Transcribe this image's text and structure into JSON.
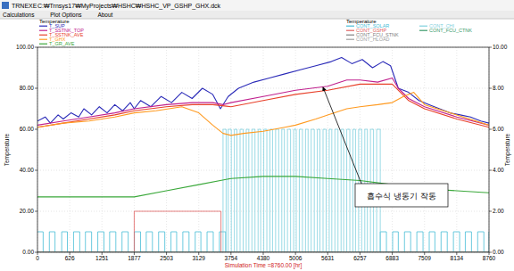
{
  "window": {
    "title": "TRNEXE",
    "path": "C:₩Trnsys17₩MyProjects₩HSHC₩HSHC_VP_GSHP_GHX.dck",
    "menu": [
      "Calculations",
      "Plot Options",
      "About"
    ]
  },
  "chart_data": {
    "type": "line",
    "x_label": "Simulation Time =8760.00 [hr]",
    "y_label": "Temperature",
    "y2_label": "Temperature",
    "legend_title": "Temperature",
    "legend2_title": "Temperature",
    "annotation": "흡수식 냉동기 작동",
    "grid": true,
    "xlim": [
      0,
      8760
    ],
    "xticks": [
      0,
      626,
      1251,
      1877,
      2503,
      3129,
      3754,
      4380,
      5006,
      5631,
      6257,
      6883,
      7509,
      8134,
      8760
    ],
    "ylim": [
      0,
      100
    ],
    "yticks": [
      {
        "value": 0,
        "label": "0.00"
      },
      {
        "value": 20,
        "label": "20.00"
      },
      {
        "value": 40,
        "label": "40.00"
      },
      {
        "value": 60,
        "label": "60.00"
      },
      {
        "value": 80,
        "label": "80.00"
      },
      {
        "value": 100,
        "label": "100.00"
      }
    ],
    "y2lim": [
      0,
      10
    ],
    "y2ticks": [
      {
        "value": 0,
        "label": "0.00"
      },
      {
        "value": 2,
        "label": "2.00"
      },
      {
        "value": 4,
        "label": "4.00"
      },
      {
        "value": 6,
        "label": "6.00"
      },
      {
        "value": 8,
        "label": "8.00"
      },
      {
        "value": 10,
        "label": "10.00"
      }
    ],
    "series": [
      {
        "name": "CONT_SOLAR",
        "color": "#45bcd6",
        "axis": "y2",
        "line_style": "step",
        "x": [
          0,
          110,
          230,
          340,
          470,
          580,
          700,
          820,
          930,
          1050,
          1170,
          1290,
          1400,
          1520,
          1640,
          1760,
          1880,
          2000,
          2110,
          2230,
          2350,
          2470,
          2590,
          2700,
          2820,
          2940,
          3060,
          3170,
          3290,
          3410,
          3530,
          3650,
          6650,
          6770,
          6890,
          7000,
          7120,
          7240,
          7360,
          7480,
          7600,
          7710,
          7830,
          7950,
          8070,
          8190,
          8300,
          8420,
          8540,
          8660,
          8760
        ],
        "values": [
          1,
          0,
          1,
          0,
          1,
          0,
          1,
          0,
          1,
          0,
          1,
          0,
          1,
          0,
          1,
          0,
          1,
          0,
          1,
          0,
          1,
          0,
          1,
          0,
          1,
          0,
          1,
          0,
          1,
          0,
          1,
          0,
          1,
          0,
          1,
          0,
          1,
          0,
          1,
          0,
          1,
          0,
          1,
          0,
          1,
          0,
          1,
          0,
          1,
          0,
          1
        ]
      },
      {
        "name": "CONT_CHI",
        "color": "#7fd0de",
        "axis": "y2",
        "line_style": "step",
        "x": [
          0,
          3600,
          3660,
          3700,
          3760,
          3820,
          3870,
          3930,
          3990,
          4050,
          4100,
          4160,
          4220,
          4280,
          4330,
          4390,
          4450,
          4510,
          4560,
          4620,
          4680,
          4740,
          4790,
          4850,
          4910,
          4970,
          5020,
          5080,
          5140,
          5200,
          5250,
          5310,
          5370,
          5430,
          5480,
          5540,
          5600,
          5660,
          5710,
          5770,
          5830,
          5890,
          5940,
          6000,
          6060,
          6120,
          6170,
          6230,
          6290,
          6350,
          6400,
          6460,
          6520,
          6580,
          6650,
          8760
        ],
        "values": [
          0,
          6,
          0,
          6,
          0,
          6,
          0,
          6,
          0,
          6,
          0,
          6,
          0,
          6,
          0,
          6,
          0,
          6,
          0,
          6,
          0,
          6,
          0,
          6,
          0,
          6,
          0,
          6,
          0,
          6,
          0,
          6,
          0,
          6,
          0,
          6,
          0,
          6,
          0,
          6,
          0,
          6,
          0,
          6,
          0,
          6,
          0,
          6,
          0,
          6,
          0,
          6,
          0,
          6,
          0,
          0
        ]
      },
      {
        "name": "CONT_GSHP",
        "color": "#e06060",
        "axis": "y2",
        "line_style": "step",
        "x": [
          0,
          1877,
          3560,
          8760
        ],
        "values": [
          0,
          2,
          0,
          0
        ]
      },
      {
        "name": "CONT_FCU_CTNK",
        "color": "#3a9a6a",
        "axis": "y2",
        "line_style": "step",
        "x": [
          0,
          8760
        ],
        "values": [
          0,
          0
        ]
      },
      {
        "name": "CONT_FCU_STNK",
        "color": "#808080",
        "axis": "y2",
        "line_style": "step",
        "x": [
          0,
          8760
        ],
        "values": [
          0,
          0
        ]
      },
      {
        "name": "CONT_HLOAD",
        "color": "#a0a0a0",
        "axis": "y2",
        "line_style": "step",
        "x": [
          0,
          8760
        ],
        "values": [
          0,
          0
        ]
      },
      {
        "name": "T_SUP",
        "color": "#2a2ab8",
        "axis": "y",
        "x": [
          0,
          150,
          250,
          400,
          500,
          650,
          800,
          900,
          1050,
          1200,
          1350,
          1500,
          1650,
          1800,
          1877,
          2000,
          2200,
          2400,
          2600,
          2800,
          3000,
          3200,
          3400,
          3550,
          3700,
          3900,
          4200,
          4500,
          4800,
          5100,
          5400,
          5700,
          5900,
          6100,
          6300,
          6500,
          6700,
          6850,
          7000,
          7200,
          7400,
          7600,
          7800,
          8000,
          8200,
          8400,
          8600,
          8760
        ],
        "values": [
          64,
          66,
          63,
          67,
          65,
          68,
          66,
          70,
          67,
          71,
          68,
          72,
          69,
          73,
          70,
          74,
          71,
          76,
          73,
          78,
          75,
          80,
          77,
          70,
          76,
          80,
          83,
          85,
          87,
          89,
          91,
          93,
          95,
          92,
          94,
          90,
          93,
          91,
          80,
          78,
          74,
          72,
          70,
          68,
          67,
          66,
          64,
          63
        ]
      },
      {
        "name": "T_SSTNK_TOP",
        "color": "#c0208e",
        "axis": "y",
        "x": [
          0,
          500,
          1000,
          1500,
          1877,
          2500,
          3000,
          3400,
          3600,
          3754,
          4380,
          5006,
          5631,
          6000,
          6257,
          6600,
          6883,
          7000,
          7200,
          7509,
          8134,
          8760
        ],
        "values": [
          62,
          64,
          66,
          68,
          70,
          72,
          73,
          73,
          72,
          73,
          76,
          79,
          81,
          84,
          84,
          83,
          85,
          80,
          75,
          71,
          66,
          62
        ]
      },
      {
        "name": "T_SSTNK_AVE",
        "color": "#e8402a",
        "axis": "y",
        "x": [
          0,
          500,
          1000,
          1500,
          1877,
          2500,
          3000,
          3400,
          3754,
          4380,
          5006,
          5631,
          6257,
          6883,
          7200,
          7509,
          8134,
          8760
        ],
        "values": [
          61,
          63,
          65,
          67,
          69,
          71,
          72,
          72,
          71,
          74,
          77,
          79,
          82,
          82,
          74,
          70,
          65,
          61
        ]
      },
      {
        "name": "T_GHX",
        "color": "#ff9a20",
        "axis": "y",
        "x": [
          0,
          500,
          1000,
          1500,
          1877,
          2300,
          2800,
          3129,
          3400,
          3600,
          3754,
          4000,
          4380,
          4800,
          5006,
          5400,
          5631,
          6000,
          6257,
          6600,
          6883,
          7100,
          7300,
          7509,
          8134,
          8760
        ],
        "values": [
          61,
          63,
          64,
          66,
          68,
          69,
          71,
          68,
          62,
          58,
          57,
          58,
          59,
          61,
          62,
          65,
          67,
          70,
          71,
          72,
          73,
          76,
          78,
          72,
          67,
          62
        ]
      },
      {
        "name": "T_GR_AVE",
        "color": "#3aa83a",
        "axis": "y",
        "x": [
          0,
          1000,
          1877,
          2500,
          3129,
          3754,
          4380,
          5006,
          5631,
          6257,
          6883,
          7509,
          8134,
          8760
        ],
        "values": [
          27,
          27,
          27,
          30,
          33,
          36,
          37,
          37,
          36,
          35,
          33,
          31,
          30,
          29
        ]
      }
    ]
  }
}
